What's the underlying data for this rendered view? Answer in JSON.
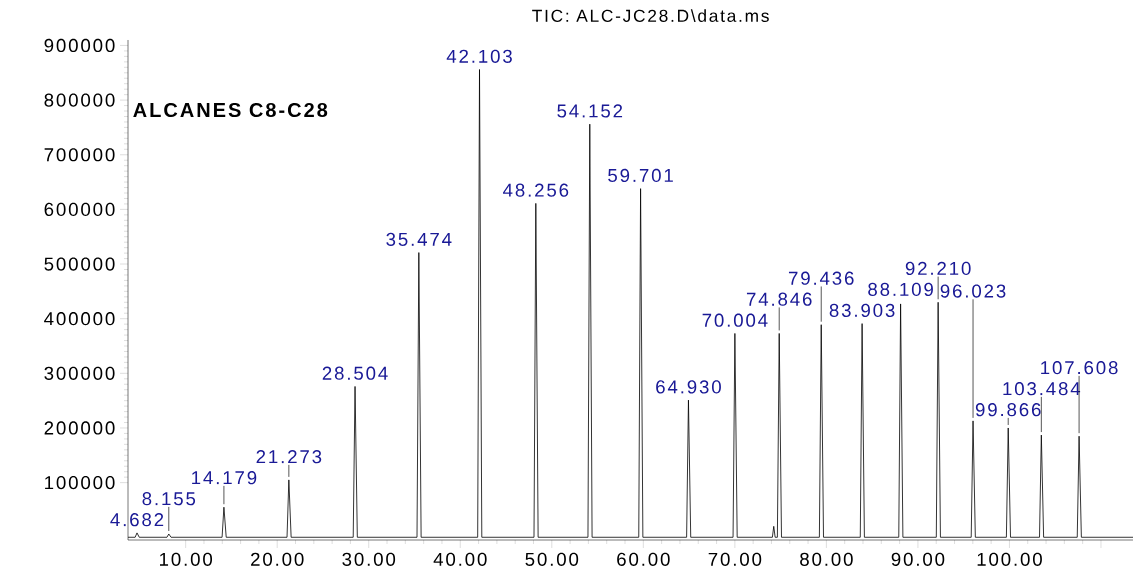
{
  "chart_data": {
    "type": "line",
    "title": "TIC: ALC-JC28.D\\data.ms",
    "annotations": [
      "ALCANES C8-C28",
      {
        "text": "4.682",
        "x": 4.682,
        "y": 8000
      },
      {
        "text": "8.155",
        "x": 8.155,
        "y": 6000
      },
      {
        "text": "14.179",
        "x": 14.179,
        "y": 55000
      },
      {
        "text": "21.273",
        "x": 21.273,
        "y": 105000
      },
      {
        "text": "28.504",
        "x": 28.504,
        "y": 276000
      },
      {
        "text": "35.474",
        "x": 35.474,
        "y": 521000
      },
      {
        "text": "42.103",
        "x": 42.103,
        "y": 856000
      },
      {
        "text": "48.256",
        "x": 48.256,
        "y": 611000
      },
      {
        "text": "54.152",
        "x": 54.152,
        "y": 756000
      },
      {
        "text": "59.701",
        "x": 59.701,
        "y": 638000
      },
      {
        "text": "64.930",
        "x": 64.93,
        "y": 251000
      },
      {
        "text": "70.004",
        "x": 70.004,
        "y": 373000
      },
      {
        "text": "74.846",
        "x": 74.846,
        "y": 373000
      },
      {
        "text": "79.436",
        "x": 79.436,
        "y": 389000
      },
      {
        "text": "83.903",
        "x": 83.903,
        "y": 391000
      },
      {
        "text": "88.109",
        "x": 88.109,
        "y": 427000
      },
      {
        "text": "92.210",
        "x": 92.21,
        "y": 430000
      },
      {
        "text": "96.023",
        "x": 96.023,
        "y": 213000
      },
      {
        "text": "99.866",
        "x": 99.866,
        "y": 200000
      },
      {
        "text": "103.484",
        "x": 103.484,
        "y": 187000
      },
      {
        "text": "107.608",
        "x": 107.608,
        "y": 185000
      }
    ],
    "x": [
      3.7,
      4.48,
      4.682,
      4.93,
      7.955,
      8.155,
      8.405,
      13.979,
      14.179,
      14.429,
      21.073,
      21.273,
      21.523,
      28.304,
      28.504,
      28.754,
      35.274,
      35.474,
      35.724,
      41.903,
      42.103,
      42.353,
      48.056,
      48.256,
      48.506,
      53.952,
      54.152,
      54.402,
      59.501,
      59.701,
      59.951,
      64.73,
      64.93,
      65.18,
      69.804,
      70.004,
      70.254,
      74.1,
      74.25,
      74.4,
      74.646,
      74.846,
      75.096,
      79.236,
      79.436,
      79.686,
      83.703,
      83.903,
      84.153,
      87.909,
      88.109,
      88.359,
      92.01,
      92.21,
      92.46,
      95.823,
      96.023,
      96.273,
      99.666,
      99.866,
      100.116,
      103.284,
      103.484,
      103.734,
      107.408,
      107.608,
      107.858,
      113.5
    ],
    "series": [
      {
        "color": "#000000",
        "values": [
          0,
          0,
          8000,
          0,
          0,
          6000,
          0,
          0,
          55000,
          0,
          0,
          105000,
          0,
          0,
          276000,
          0,
          0,
          521000,
          0,
          0,
          856000,
          0,
          0,
          611000,
          0,
          0,
          756000,
          0,
          0,
          638000,
          0,
          0,
          251000,
          0,
          0,
          373000,
          0,
          0,
          20000,
          0,
          0,
          373000,
          0,
          0,
          389000,
          0,
          0,
          391000,
          0,
          0,
          427000,
          0,
          0,
          430000,
          0,
          0,
          213000,
          0,
          0,
          200000,
          0,
          0,
          187000,
          0,
          0,
          185000,
          0,
          0
        ]
      }
    ],
    "xlim": [
      3.7,
      113.5
    ],
    "ylim": [
      -5000,
      910000
    ],
    "xticks": [
      {
        "value": 10,
        "label": "10.00"
      },
      {
        "value": 20,
        "label": "20.00"
      },
      {
        "value": 30,
        "label": "30.00"
      },
      {
        "value": 40,
        "label": "40.00"
      },
      {
        "value": 50,
        "label": "50.00"
      },
      {
        "value": 60,
        "label": "60.00"
      },
      {
        "value": 70,
        "label": "70.00"
      },
      {
        "value": 80,
        "label": "80.00"
      },
      {
        "value": 90,
        "label": "90.00"
      },
      {
        "value": 100,
        "label": "100.00"
      },
      {
        "value": 110,
        "label": null
      }
    ],
    "yticks": [
      100000,
      200000,
      300000,
      400000,
      500000,
      600000,
      700000,
      800000,
      900000
    ]
  }
}
